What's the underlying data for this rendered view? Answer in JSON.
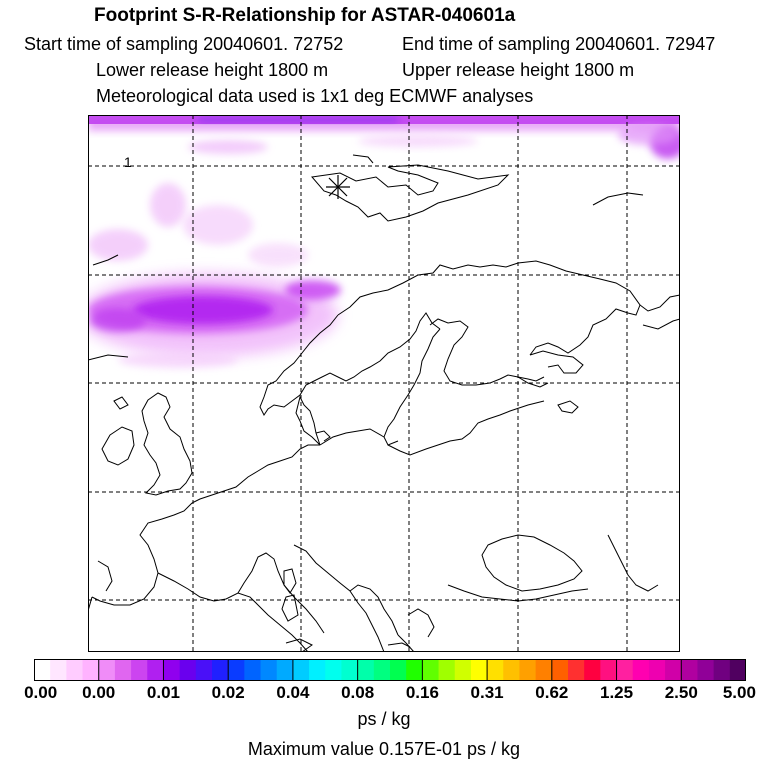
{
  "header": {
    "title": "Footprint S-R-Relationship for ASTAR-040601a",
    "start_time": "Start time of sampling 20040601. 72752",
    "end_time": "End time of sampling 20040601. 72947",
    "lower_height": "Lower release height 1800 m",
    "upper_height": "Upper release height 1800 m",
    "met_data": "Meteorological data used is 1x1 deg ECMWF analyses"
  },
  "map": {
    "region": "Europe / North Atlantic / Arctic",
    "grid_label": "1",
    "station_marker": "asterisk-station-marker",
    "plume_color": "#b020f0"
  },
  "colorbar": {
    "tick_labels": [
      "0.00",
      "0.00",
      "0.01",
      "0.02",
      "0.04",
      "0.08",
      "0.16",
      "0.31",
      "0.62",
      "1.25",
      "2.50",
      "5.00"
    ],
    "colors": [
      "#ffffff",
      "#ffe6ff",
      "#ffccff",
      "#ffb3ff",
      "#f08cf8",
      "#e066f0",
      "#cc44f0",
      "#b020f0",
      "#9000ee",
      "#6a00ee",
      "#4a10f8",
      "#2020ff",
      "#0a3cff",
      "#0064ff",
      "#0088ff",
      "#00aaff",
      "#00ccff",
      "#00f0ff",
      "#00ffee",
      "#00ffd0",
      "#00ffaa",
      "#00ff80",
      "#00ff50",
      "#20ff00",
      "#60ff00",
      "#a0ff00",
      "#d0ff00",
      "#ffff00",
      "#ffe000",
      "#ffc000",
      "#ffa000",
      "#ff8000",
      "#ff6000",
      "#ff3030",
      "#ff0040",
      "#ff1080",
      "#ff20a0",
      "#ff00b0",
      "#ee00b0",
      "#d000a8",
      "#b000a0",
      "#900098",
      "#700080",
      "#500060"
    ],
    "unit": "ps / kg"
  },
  "footer": {
    "max_value": "Maximum value  0.157E-01 ps / kg"
  }
}
